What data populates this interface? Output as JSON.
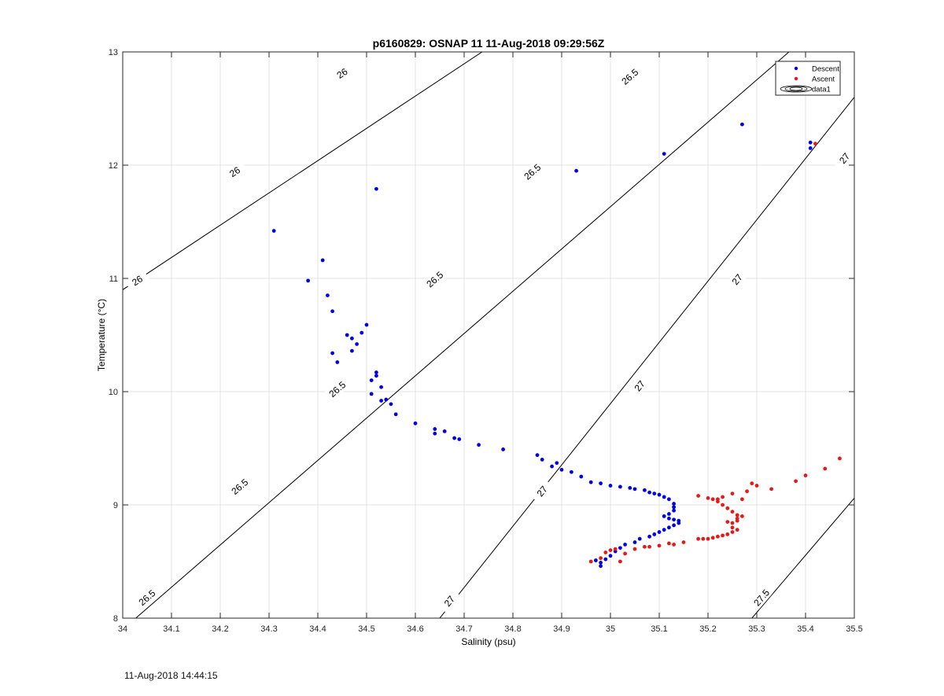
{
  "footer": {
    "timestamp": "11-Aug-2018 14:44:15"
  },
  "chart_data": {
    "type": "scatter",
    "title": "p6160829: OSNAP 11 11-Aug-2018 09:29:56Z",
    "xlabel": "Salinity (psu)",
    "ylabel": "Temperature (°C)",
    "xlim": [
      34,
      35.5
    ],
    "ylim": [
      8,
      13
    ],
    "xticks": [
      "34",
      "34.1",
      "34.2",
      "34.3",
      "34.4",
      "34.5",
      "34.6",
      "34.7",
      "34.8",
      "34.9",
      "35",
      "35.1",
      "35.2",
      "35.3",
      "35.4",
      "35.5"
    ],
    "yticks": [
      "8",
      "9",
      "10",
      "11",
      "12",
      "13"
    ],
    "grid": true,
    "legend_position": "top-right",
    "legend": [
      {
        "label": "Descent",
        "color": "#0000e6"
      },
      {
        "label": "Ascent",
        "color": "#e61919"
      },
      {
        "label": "data1",
        "color": "#000000"
      }
    ],
    "contours": [
      {
        "level": "26",
        "x": [
          34.0,
          35.0
        ],
        "y": [
          10.9,
          13.75
        ],
        "labels": [
          [
            34.03,
            10.98
          ],
          [
            34.23,
            11.94
          ],
          [
            34.45,
            12.81
          ]
        ]
      },
      {
        "level": "26.5",
        "x": [
          34.0,
          35.5
        ],
        "y": [
          7.9,
          13.5
        ],
        "labels": [
          [
            34.05,
            8.18
          ],
          [
            34.24,
            9.16
          ],
          [
            34.44,
            10.02
          ],
          [
            34.64,
            10.99
          ],
          [
            34.84,
            11.94
          ],
          [
            35.04,
            12.78
          ]
        ]
      },
      {
        "level": "27",
        "x": [
          34.65,
          35.5
        ],
        "y": [
          8.0,
          12.6
        ],
        "labels": [
          [
            34.67,
            8.15
          ],
          [
            34.86,
            9.12
          ],
          [
            35.06,
            10.05
          ],
          [
            35.26,
            10.99
          ],
          [
            35.48,
            12.06
          ]
        ]
      },
      {
        "level": "27.5",
        "x": [
          35.29,
          35.5
        ],
        "y": [
          8.0,
          9.06
        ],
        "labels": [
          [
            35.31,
            8.18
          ]
        ]
      }
    ],
    "series": [
      {
        "name": "Descent",
        "color": "#0000e6",
        "points": [
          [
            34.31,
            11.42
          ],
          [
            34.52,
            11.79
          ],
          [
            34.93,
            11.95
          ],
          [
            35.11,
            12.1
          ],
          [
            35.27,
            12.36
          ],
          [
            35.41,
            12.2
          ],
          [
            35.41,
            12.15
          ],
          [
            34.38,
            10.98
          ],
          [
            34.41,
            11.16
          ],
          [
            34.42,
            10.85
          ],
          [
            34.43,
            10.71
          ],
          [
            34.43,
            10.34
          ],
          [
            34.44,
            10.26
          ],
          [
            34.46,
            10.5
          ],
          [
            34.47,
            10.47
          ],
          [
            34.47,
            10.36
          ],
          [
            34.48,
            10.42
          ],
          [
            34.49,
            10.52
          ],
          [
            34.5,
            10.59
          ],
          [
            34.51,
            10.1
          ],
          [
            34.51,
            9.98
          ],
          [
            34.52,
            10.17
          ],
          [
            34.52,
            10.14
          ],
          [
            34.53,
            9.92
          ],
          [
            34.53,
            10.04
          ],
          [
            34.54,
            9.93
          ],
          [
            34.55,
            9.89
          ],
          [
            34.56,
            9.8
          ],
          [
            34.6,
            9.72
          ],
          [
            34.64,
            9.67
          ],
          [
            34.64,
            9.63
          ],
          [
            34.66,
            9.65
          ],
          [
            34.68,
            9.59
          ],
          [
            34.69,
            9.58
          ],
          [
            34.73,
            9.53
          ],
          [
            34.78,
            9.49
          ],
          [
            34.85,
            9.44
          ],
          [
            34.86,
            9.4
          ],
          [
            34.88,
            9.34
          ],
          [
            34.89,
            9.37
          ],
          [
            34.9,
            9.31
          ],
          [
            34.92,
            9.29
          ],
          [
            34.94,
            9.25
          ],
          [
            34.96,
            9.2
          ],
          [
            34.98,
            9.19
          ],
          [
            35.0,
            9.17
          ],
          [
            35.02,
            9.16
          ],
          [
            35.04,
            9.15
          ],
          [
            35.05,
            9.14
          ],
          [
            35.07,
            9.13
          ],
          [
            35.08,
            9.11
          ],
          [
            35.09,
            9.1
          ],
          [
            35.1,
            9.09
          ],
          [
            35.11,
            9.07
          ],
          [
            35.12,
            9.05
          ],
          [
            35.13,
            9.01
          ],
          [
            35.13,
            8.98
          ],
          [
            35.13,
            8.95
          ],
          [
            35.12,
            8.92
          ],
          [
            35.11,
            8.9
          ],
          [
            35.12,
            8.88
          ],
          [
            35.13,
            8.87
          ],
          [
            35.14,
            8.86
          ],
          [
            35.14,
            8.84
          ],
          [
            35.13,
            8.82
          ],
          [
            35.12,
            8.8
          ],
          [
            35.11,
            8.78
          ],
          [
            35.1,
            8.76
          ],
          [
            35.09,
            8.74
          ],
          [
            35.08,
            8.72
          ],
          [
            35.06,
            8.7
          ],
          [
            35.05,
            8.67
          ],
          [
            35.03,
            8.65
          ],
          [
            35.02,
            8.62
          ],
          [
            35.01,
            8.59
          ],
          [
            35.0,
            8.55
          ],
          [
            34.99,
            8.52
          ],
          [
            34.98,
            8.49
          ],
          [
            34.98,
            8.46
          ],
          [
            34.97,
            8.51
          ]
        ]
      },
      {
        "name": "Ascent",
        "color": "#e61919",
        "points": [
          [
            35.42,
            12.19
          ],
          [
            34.96,
            8.5
          ],
          [
            34.98,
            8.53
          ],
          [
            34.99,
            8.58
          ],
          [
            35.0,
            8.6
          ],
          [
            35.01,
            8.61
          ],
          [
            35.02,
            8.5
          ],
          [
            35.03,
            8.57
          ],
          [
            35.05,
            8.61
          ],
          [
            35.07,
            8.63
          ],
          [
            35.08,
            8.63
          ],
          [
            35.1,
            8.64
          ],
          [
            35.12,
            8.66
          ],
          [
            35.13,
            8.65
          ],
          [
            35.15,
            8.67
          ],
          [
            35.18,
            8.7
          ],
          [
            35.19,
            8.7
          ],
          [
            35.2,
            8.7
          ],
          [
            35.21,
            8.71
          ],
          [
            35.22,
            8.72
          ],
          [
            35.23,
            8.73
          ],
          [
            35.24,
            8.74
          ],
          [
            35.25,
            8.76
          ],
          [
            35.25,
            8.8
          ],
          [
            35.25,
            8.84
          ],
          [
            35.26,
            8.86
          ],
          [
            35.26,
            8.88
          ],
          [
            35.26,
            8.91
          ],
          [
            35.25,
            8.94
          ],
          [
            35.24,
            8.97
          ],
          [
            35.23,
            9.0
          ],
          [
            35.22,
            9.03
          ],
          [
            35.21,
            9.05
          ],
          [
            35.2,
            9.06
          ],
          [
            35.18,
            9.08
          ],
          [
            35.23,
            9.07
          ],
          [
            35.25,
            9.1
          ],
          [
            35.27,
            9.05
          ],
          [
            35.28,
            9.12
          ],
          [
            35.29,
            9.19
          ],
          [
            35.3,
            9.17
          ],
          [
            35.33,
            9.14
          ],
          [
            35.38,
            9.21
          ],
          [
            35.4,
            9.26
          ],
          [
            35.44,
            9.32
          ],
          [
            35.47,
            9.41
          ],
          [
            35.27,
            8.9
          ],
          [
            35.24,
            8.85
          ],
          [
            35.26,
            8.78
          ],
          [
            35.22,
            9.05
          ]
        ]
      }
    ]
  }
}
